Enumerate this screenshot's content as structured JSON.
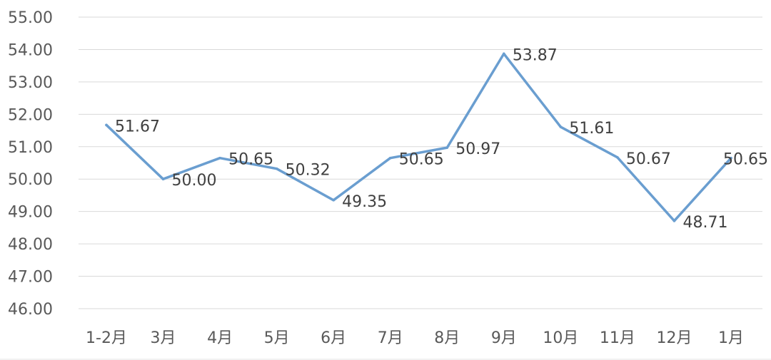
{
  "chart_data": {
    "type": "line",
    "categories": [
      "1-2月",
      "3月",
      "4月",
      "5月",
      "6月",
      "7月",
      "8月",
      "9月",
      "10月",
      "11月",
      "12月",
      "1月"
    ],
    "series": [
      {
        "values": [
          51.67,
          50.0,
          50.65,
          50.32,
          49.35,
          50.65,
          50.97,
          53.87,
          51.61,
          50.67,
          48.71,
          50.65
        ],
        "labels": [
          "51.67",
          "50.00",
          "50.65",
          "50.32",
          "49.35",
          "50.65",
          "50.97",
          "53.87",
          "51.61",
          "50.67",
          "48.71",
          "50.65"
        ],
        "color": "#6a9ed0"
      }
    ],
    "yticks": [
      "55.00",
      "54.00",
      "53.00",
      "52.00",
      "51.00",
      "50.00",
      "49.00",
      "48.00",
      "47.00",
      "46.00"
    ],
    "ylim": [
      46,
      55
    ],
    "grid": true,
    "legend": "none",
    "title": "",
    "xlabel": "",
    "ylabel": ""
  }
}
